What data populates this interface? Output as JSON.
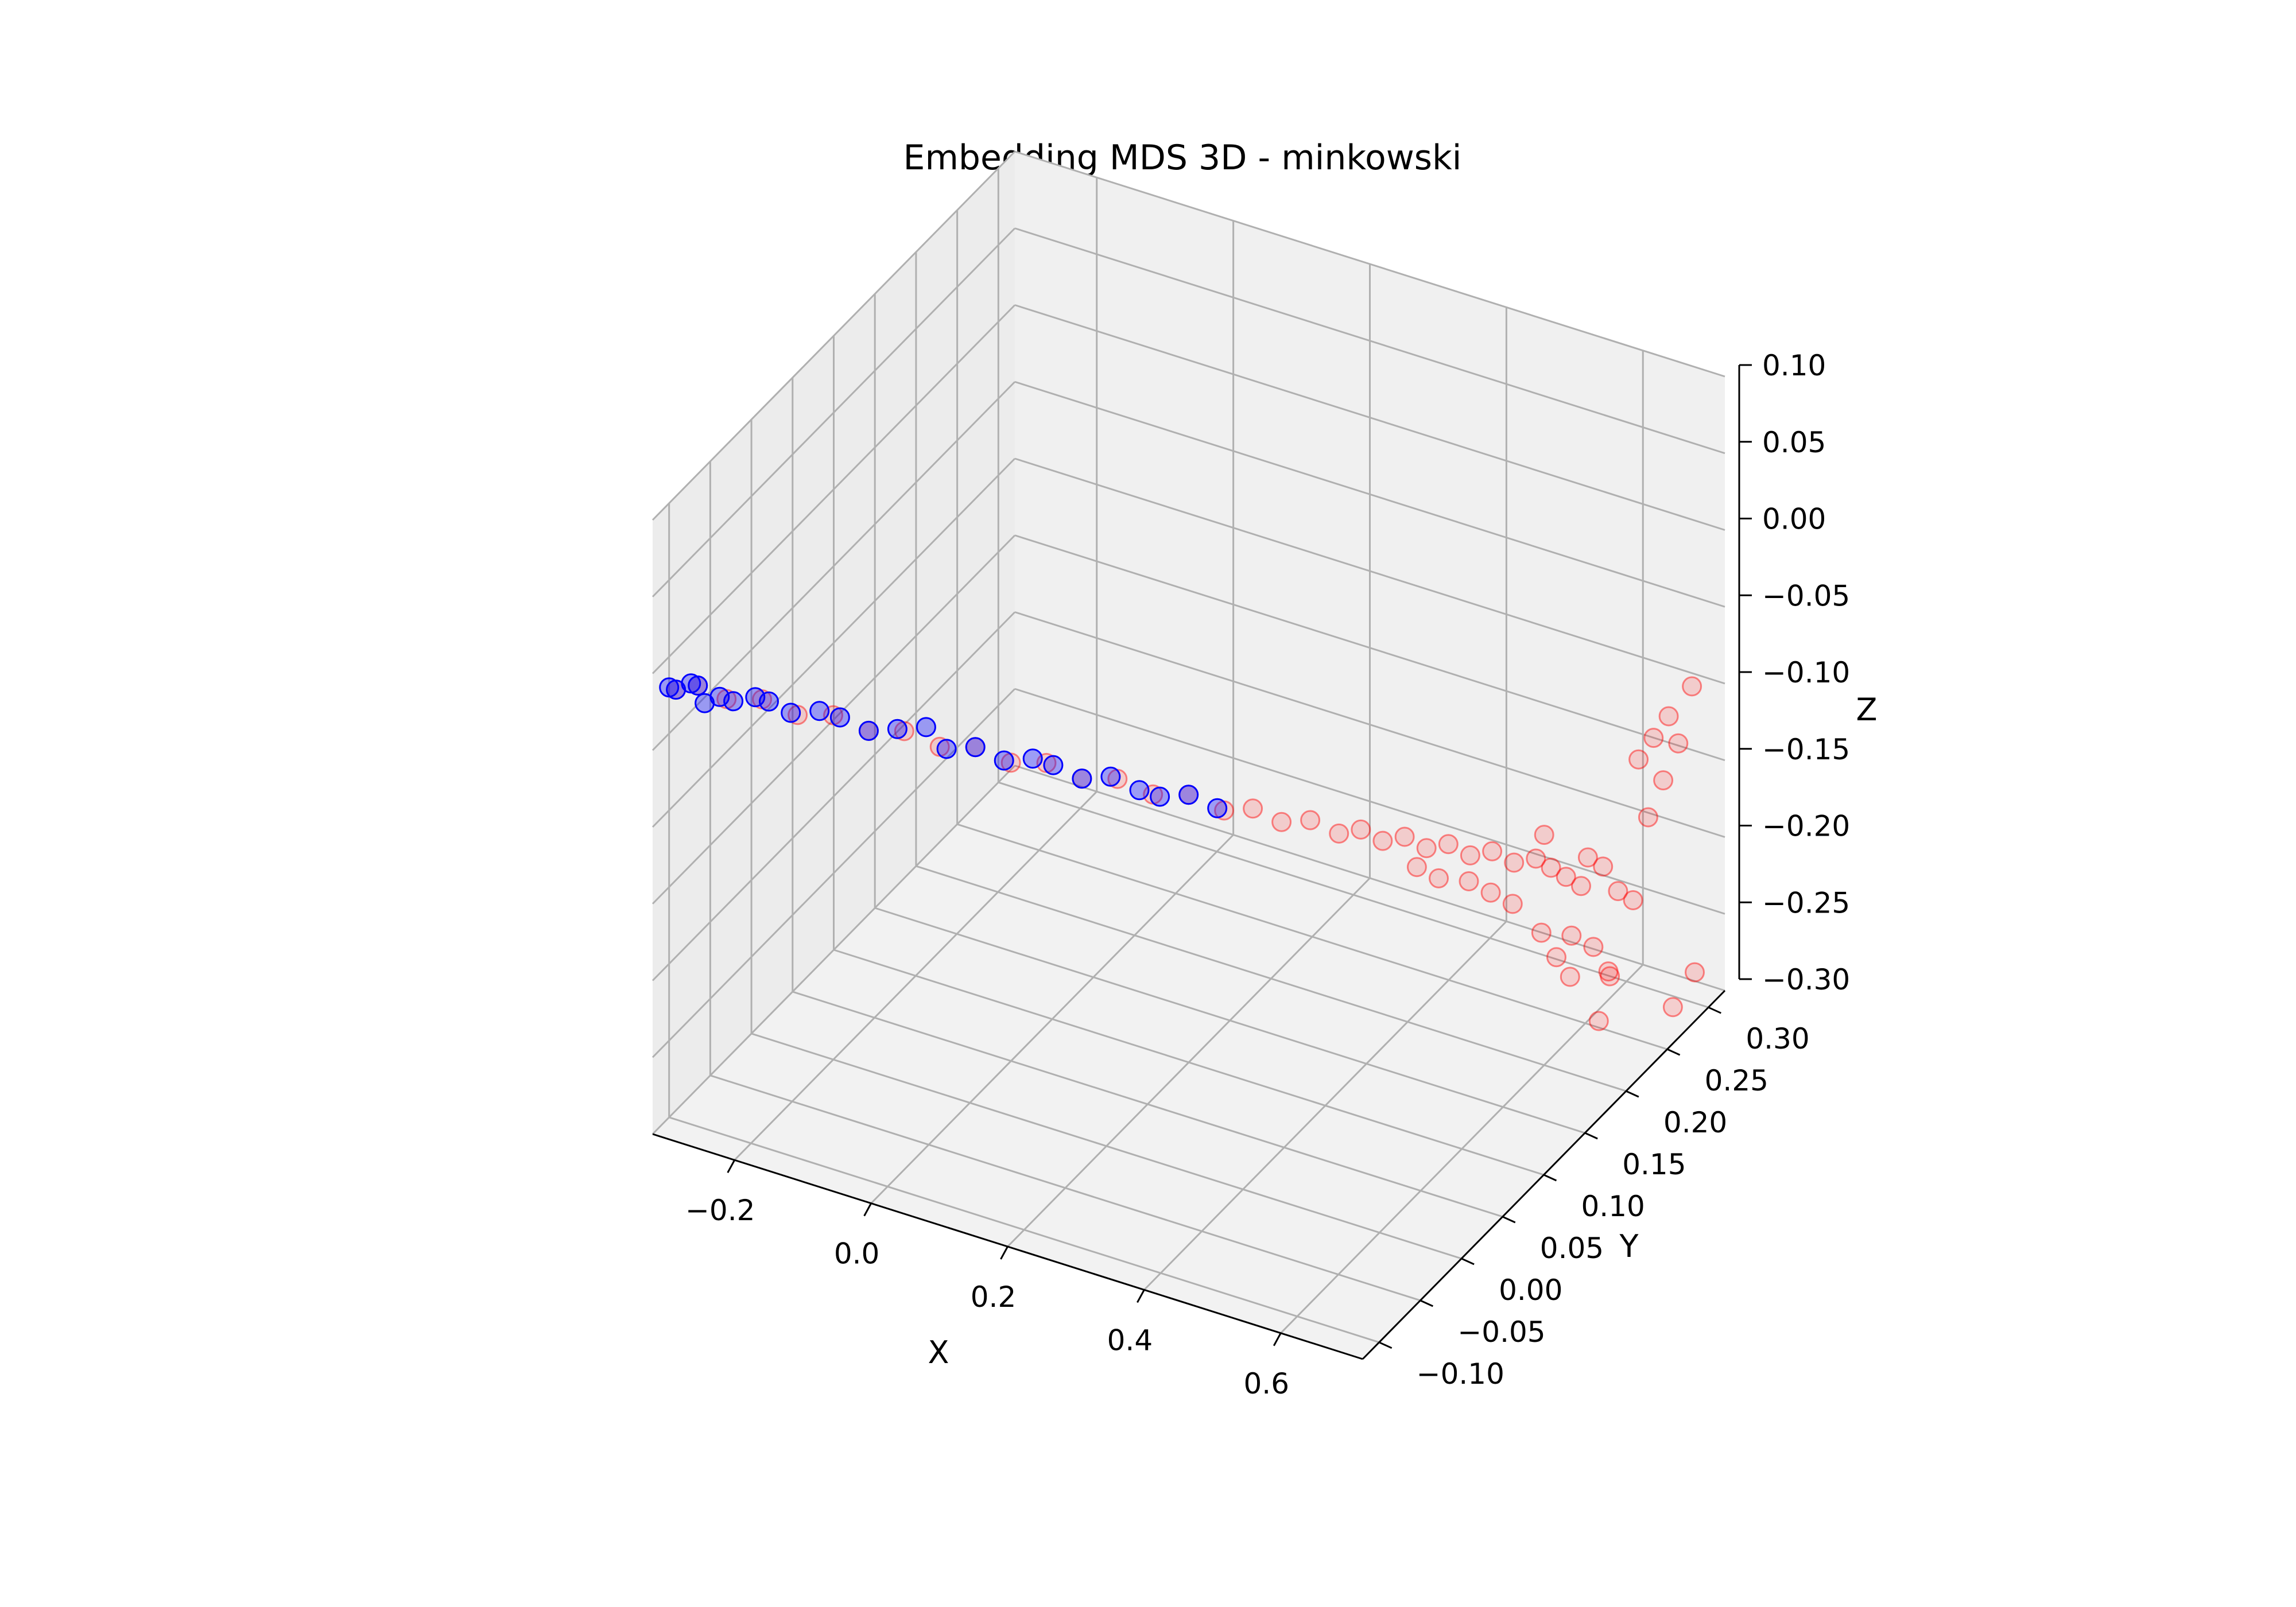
{
  "chart_data": {
    "type": "scatter",
    "projection": "3d",
    "title": "Embedding MDS 3D - minkowski",
    "xlabel": "X",
    "ylabel": "Y",
    "zlabel": "Z",
    "xlim": [
      -0.32,
      0.72
    ],
    "ylim": [
      -0.12,
      0.32
    ],
    "zlim": [
      -0.3,
      0.1
    ],
    "xticks": [
      "−0.2",
      "0.0",
      "0.2",
      "0.4",
      "0.6"
    ],
    "yticks": [
      "−0.10",
      "−0.05",
      "0.00",
      "0.05",
      "0.10",
      "0.15",
      "0.20",
      "0.25",
      "0.30"
    ],
    "zticks": [
      "−0.30",
      "−0.25",
      "−0.20",
      "−0.15",
      "−0.10",
      "−0.05",
      "0.00",
      "0.05",
      "0.10"
    ],
    "grid": true,
    "colors": {
      "series_a": "#ff0000",
      "series_b": "#0000ff",
      "pane": "#f2f2f2",
      "grid": "#b0b0b0"
    },
    "series": [
      {
        "color": "#ff0000",
        "alpha": 0.15,
        "points": [
          [
            -0.31,
            -0.1,
            -0.02
          ],
          [
            -0.29,
            -0.09,
            -0.02
          ],
          [
            -0.26,
            -0.08,
            -0.03
          ],
          [
            -0.22,
            -0.07,
            -0.03
          ],
          [
            -0.18,
            -0.06,
            -0.04
          ],
          [
            -0.14,
            -0.05,
            -0.04
          ],
          [
            -0.1,
            -0.04,
            -0.05
          ],
          [
            -0.06,
            -0.03,
            -0.05
          ],
          [
            -0.02,
            -0.02,
            -0.06
          ],
          [
            0.02,
            -0.01,
            -0.06
          ],
          [
            0.06,
            0.0,
            -0.07
          ],
          [
            0.1,
            0.01,
            -0.07
          ],
          [
            0.14,
            0.02,
            -0.08
          ],
          [
            0.18,
            0.03,
            -0.08
          ],
          [
            0.22,
            0.04,
            -0.09
          ],
          [
            0.26,
            0.05,
            -0.09
          ],
          [
            0.3,
            0.06,
            -0.1
          ],
          [
            0.33,
            0.07,
            -0.1
          ],
          [
            0.36,
            0.08,
            -0.11
          ],
          [
            0.39,
            0.09,
            -0.11
          ],
          [
            0.42,
            0.1,
            -0.12
          ],
          [
            0.44,
            0.11,
            -0.12
          ],
          [
            0.46,
            0.12,
            -0.13
          ],
          [
            0.48,
            0.13,
            -0.13
          ],
          [
            0.5,
            0.14,
            -0.14
          ],
          [
            0.52,
            0.15,
            -0.14
          ],
          [
            0.54,
            0.16,
            -0.15
          ],
          [
            0.56,
            0.17,
            -0.15
          ],
          [
            0.58,
            0.18,
            -0.16
          ],
          [
            0.6,
            0.19,
            -0.16
          ],
          [
            0.61,
            0.2,
            -0.17
          ],
          [
            0.62,
            0.21,
            -0.18
          ],
          [
            0.63,
            0.22,
            -0.19
          ],
          [
            0.64,
            0.22,
            -0.17
          ],
          [
            0.65,
            0.23,
            -0.18
          ],
          [
            0.66,
            0.24,
            -0.2
          ],
          [
            0.67,
            0.25,
            -0.21
          ],
          [
            0.68,
            0.26,
            -0.16
          ],
          [
            0.69,
            0.27,
            -0.14
          ],
          [
            0.7,
            0.28,
            -0.12
          ],
          [
            0.66,
            0.21,
            -0.22
          ],
          [
            0.67,
            0.22,
            -0.24
          ],
          [
            0.68,
            0.2,
            -0.26
          ],
          [
            0.65,
            0.19,
            -0.23
          ],
          [
            0.7,
            0.25,
            -0.1
          ],
          [
            0.71,
            0.26,
            -0.09
          ],
          [
            0.69,
            0.24,
            -0.11
          ],
          [
            0.72,
            0.28,
            -0.08
          ],
          [
            0.62,
            0.18,
            -0.2
          ],
          [
            0.64,
            0.2,
            -0.21
          ],
          [
            0.55,
            0.15,
            -0.16
          ],
          [
            0.57,
            0.16,
            -0.17
          ],
          [
            0.59,
            0.17,
            -0.18
          ],
          [
            0.53,
            0.13,
            -0.15
          ],
          [
            0.51,
            0.12,
            -0.14
          ],
          [
            0.7,
            0.3,
            -0.28
          ],
          [
            0.68,
            0.29,
            -0.3
          ],
          [
            0.66,
            0.23,
            -0.25
          ],
          [
            0.63,
            0.19,
            -0.22
          ],
          [
            0.6,
            0.2,
            -0.15
          ]
        ]
      },
      {
        "color": "#0000ff",
        "alpha": 0.35,
        "points": [
          [
            -0.32,
            -0.1,
            -0.02
          ],
          [
            -0.31,
            -0.1,
            -0.02
          ],
          [
            -0.3,
            -0.09,
            -0.02
          ],
          [
            -0.29,
            -0.09,
            -0.02
          ],
          [
            -0.28,
            -0.09,
            -0.03
          ],
          [
            -0.27,
            -0.08,
            -0.03
          ],
          [
            -0.25,
            -0.08,
            -0.03
          ],
          [
            -0.23,
            -0.07,
            -0.03
          ],
          [
            -0.21,
            -0.07,
            -0.03
          ],
          [
            -0.19,
            -0.06,
            -0.04
          ],
          [
            -0.16,
            -0.05,
            -0.04
          ],
          [
            -0.13,
            -0.05,
            -0.04
          ],
          [
            -0.1,
            -0.04,
            -0.05
          ],
          [
            -0.07,
            -0.03,
            -0.05
          ],
          [
            -0.04,
            -0.02,
            -0.05
          ],
          [
            -0.01,
            -0.02,
            -0.06
          ],
          [
            0.02,
            -0.01,
            -0.06
          ],
          [
            0.05,
            0.0,
            -0.07
          ],
          [
            0.08,
            0.01,
            -0.07
          ],
          [
            0.11,
            0.01,
            -0.07
          ],
          [
            0.14,
            0.02,
            -0.08
          ],
          [
            0.17,
            0.03,
            -0.08
          ],
          [
            0.2,
            0.04,
            -0.09
          ],
          [
            0.23,
            0.04,
            -0.09
          ],
          [
            0.26,
            0.05,
            -0.09
          ],
          [
            0.29,
            0.06,
            -0.1
          ]
        ]
      }
    ]
  }
}
